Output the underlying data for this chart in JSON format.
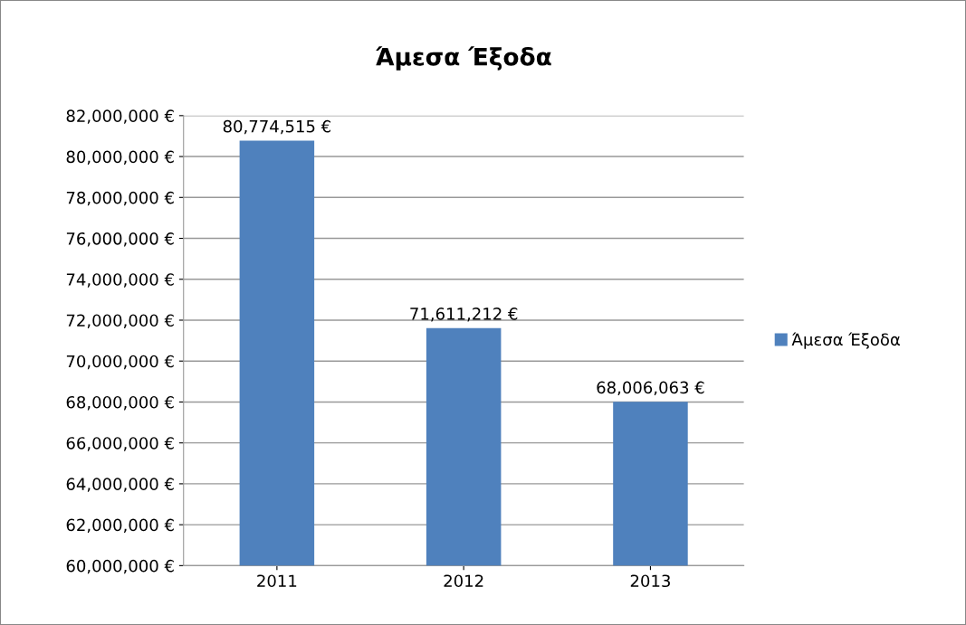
{
  "chart_data": {
    "type": "bar",
    "title": "Άμεσα Έξοδα",
    "categories": [
      "2011",
      "2012",
      "2013"
    ],
    "series": [
      {
        "name": "Άμεσα Έξοδα",
        "color": "#4f81bd",
        "values": [
          80774515,
          71611212,
          68006063
        ],
        "value_labels": [
          "80,774,515 €",
          "71,611,212 €",
          "68,006,063 €"
        ]
      }
    ],
    "ylim": [
      60000000,
      82000000
    ],
    "yticks": [
      {
        "value": 60000000,
        "label": "60,000,000 €"
      },
      {
        "value": 62000000,
        "label": "62,000,000 €"
      },
      {
        "value": 64000000,
        "label": "64,000,000 €"
      },
      {
        "value": 66000000,
        "label": "66,000,000 €"
      },
      {
        "value": 68000000,
        "label": "68,000,000 €"
      },
      {
        "value": 70000000,
        "label": "70,000,000 €"
      },
      {
        "value": 72000000,
        "label": "72,000,000 €"
      },
      {
        "value": 74000000,
        "label": "74,000,000 €"
      },
      {
        "value": 76000000,
        "label": "76,000,000 €"
      },
      {
        "value": 78000000,
        "label": "78,000,000 €"
      },
      {
        "value": 80000000,
        "label": "80,000,000 €"
      },
      {
        "value": 82000000,
        "label": "82,000,000 €"
      }
    ],
    "grid": "y",
    "legend": "right"
  }
}
